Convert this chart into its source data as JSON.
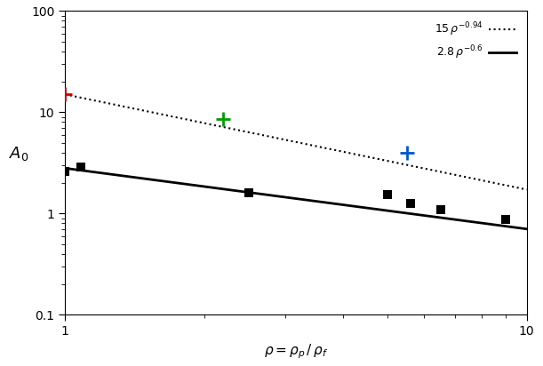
{
  "xlim": [
    1,
    10
  ],
  "ylim": [
    0.1,
    100
  ],
  "curve1_coeff": 15,
  "curve1_exp": -0.94,
  "curve2_coeff": 2.8,
  "curve2_exp": -0.6,
  "squares_x": [
    1.0,
    1.08,
    2.5,
    5.0,
    5.6,
    6.5,
    9.0
  ],
  "squares_y": [
    2.6,
    2.9,
    1.6,
    1.55,
    1.25,
    1.1,
    0.88
  ],
  "cross_red_x": [
    1.0
  ],
  "cross_red_y": [
    15.0
  ],
  "cross_green_x": [
    2.2
  ],
  "cross_green_y": [
    8.5
  ],
  "cross_blue_x": [
    5.5
  ],
  "cross_blue_y": [
    4.0
  ],
  "cross_color_red": "#cc0000",
  "cross_color_green": "#009900",
  "cross_color_blue": "#0055cc",
  "square_color": "#000000",
  "line1_color": "#000000",
  "line2_color": "#000000",
  "background_color": "#ffffff",
  "figwidth": 6.11,
  "figheight": 4.12,
  "dpi": 100
}
